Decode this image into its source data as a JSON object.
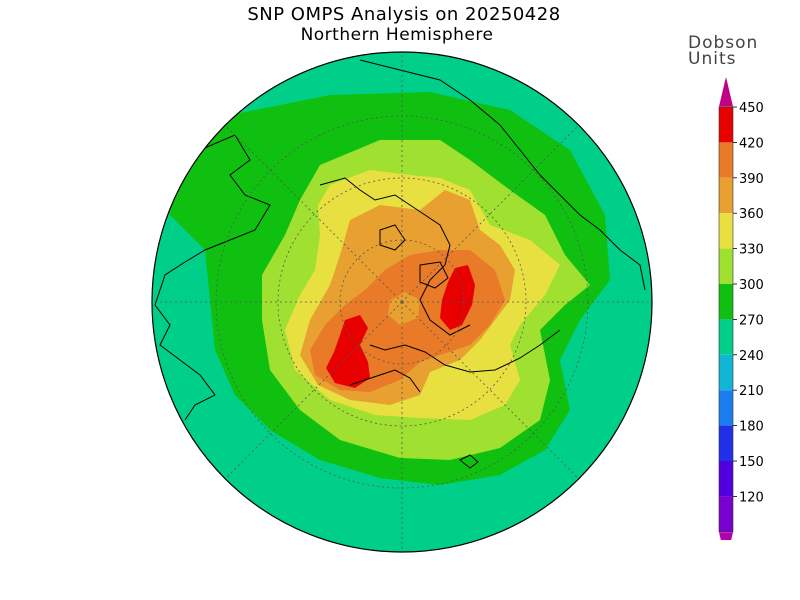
{
  "map": {
    "title": "SNP OMPS Analysis on 20250428",
    "subtitle": "Northern Hemisphere",
    "projection": "north-polar-stereographic",
    "field": "total-column-ozone"
  },
  "legend": {
    "title_line1": "Dobson",
    "title_line2": "Units",
    "levels": [
      {
        "value": "120",
        "color": "#7a00d0"
      },
      {
        "value": "150",
        "color": "#5000e0"
      },
      {
        "value": "180",
        "color": "#2030e8"
      },
      {
        "value": "210",
        "color": "#1a7ef0"
      },
      {
        "value": "240",
        "color": "#10b6d6"
      },
      {
        "value": "270",
        "color": "#00cf8a"
      },
      {
        "value": "300",
        "color": "#10c010"
      },
      {
        "value": "330",
        "color": "#a0e030"
      },
      {
        "value": "360",
        "color": "#e8e040"
      },
      {
        "value": "390",
        "color": "#e8a030"
      },
      {
        "value": "420",
        "color": "#e87a28"
      },
      {
        "value": "450",
        "color": "#e80000"
      }
    ],
    "below_min_color": "#b000b0",
    "above_max_color": "#c00080"
  },
  "contour_colors": {
    "c240": "#00cf8a",
    "c270": "#10c010",
    "c300": "#a0e030",
    "c330": "#e8e040",
    "c360": "#e8a030",
    "c390": "#e87a28",
    "c420": "#e80000"
  }
}
